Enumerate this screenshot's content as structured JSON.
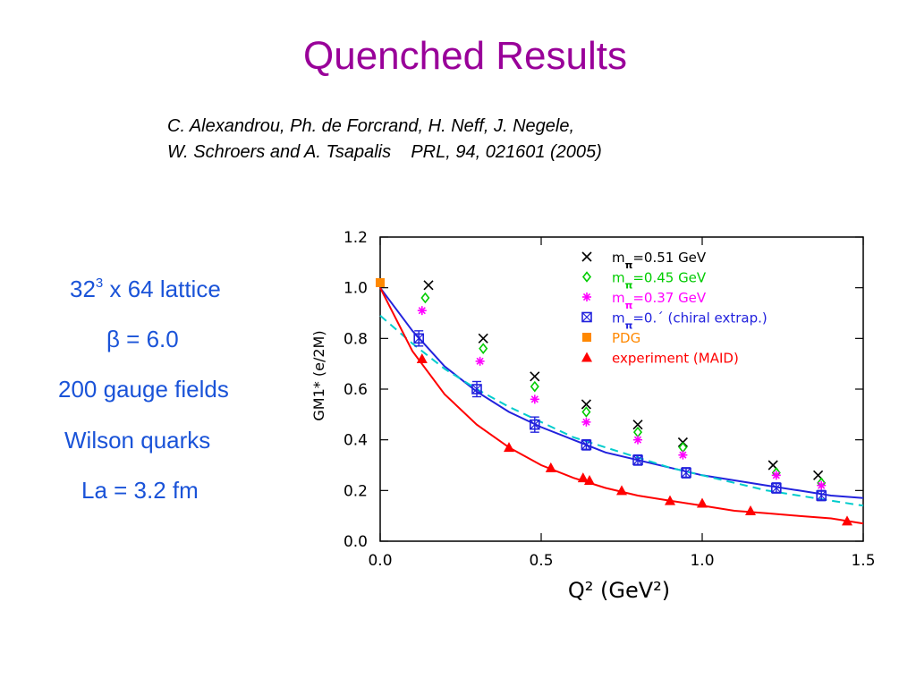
{
  "slide": {
    "title": "Quenched Results",
    "citation": {
      "line1": "C. Alexandrou, Ph. de Forcrand, H. Neff, J. Negele,",
      "line2": "W. Schroers and A. Tsapalis    PRL, 94, 021601 (2005)"
    },
    "params": {
      "lattice_base": "32",
      "lattice_exp": "3",
      "lattice_rest": " x 64 lattice",
      "beta": "β = 6.0",
      "gauge": "200 gauge fields",
      "quarks": "Wilson quarks",
      "spacing": "La = 3.2 fm"
    },
    "text_color": "#1a53d8",
    "title_color": "#990099"
  },
  "chart_data": {
    "type": "scatter",
    "xlabel": "Q² (GeV²)",
    "ylabel": "GM1* (e/2M)",
    "xlim": [
      0,
      1.5
    ],
    "ylim": [
      0,
      1.2
    ],
    "xticks": [
      "0.0",
      "0.5",
      "1.0",
      "1.5"
    ],
    "yticks": [
      "0.0",
      "0.2",
      "0.4",
      "0.6",
      "0.8",
      "1.0",
      "1.2"
    ],
    "legend_position": "top-right",
    "series": [
      {
        "name": "mπ=0.51 GeV",
        "legend_label": "m=0.51 GeV",
        "marker": "x",
        "color": "#000000",
        "points": [
          [
            0.15,
            1.01
          ],
          [
            0.32,
            0.8
          ],
          [
            0.48,
            0.65
          ],
          [
            0.64,
            0.54
          ],
          [
            0.8,
            0.46
          ],
          [
            0.94,
            0.39
          ],
          [
            1.22,
            0.3
          ],
          [
            1.36,
            0.26
          ]
        ]
      },
      {
        "name": "mπ=0.45 GeV",
        "legend_label": "m=0.45 GeV",
        "marker": "diamond",
        "color": "#00cc00",
        "points": [
          [
            0.14,
            0.96
          ],
          [
            0.32,
            0.76
          ],
          [
            0.48,
            0.61
          ],
          [
            0.64,
            0.51
          ],
          [
            0.8,
            0.43
          ],
          [
            0.94,
            0.37
          ],
          [
            1.23,
            0.27
          ],
          [
            1.37,
            0.23
          ]
        ]
      },
      {
        "name": "mπ=0.37 GeV",
        "legend_label": "m=0.37 GeV",
        "marker": "star",
        "color": "#ff00ff",
        "points": [
          [
            0.13,
            0.91
          ],
          [
            0.31,
            0.71
          ],
          [
            0.48,
            0.56
          ],
          [
            0.64,
            0.47
          ],
          [
            0.8,
            0.4
          ],
          [
            0.94,
            0.34
          ],
          [
            1.23,
            0.26
          ],
          [
            1.37,
            0.22
          ]
        ]
      },
      {
        "name": "mπ=0. (chiral extrap.)",
        "legend_label": "m=0.´ (chiral extrap.)",
        "marker": "boxed-x",
        "color": "#2222dd",
        "points": [
          [
            0.12,
            0.8
          ],
          [
            0.3,
            0.6
          ],
          [
            0.48,
            0.46
          ],
          [
            0.64,
            0.38
          ],
          [
            0.8,
            0.32
          ],
          [
            0.95,
            0.27
          ],
          [
            1.23,
            0.21
          ],
          [
            1.37,
            0.18
          ]
        ],
        "errors": [
          0.03,
          0.03,
          0.03,
          0.02,
          0.02,
          0.02,
          0.02,
          0.02
        ]
      },
      {
        "name": "PDG",
        "legend_label": "PDG",
        "marker": "square",
        "color": "#ff8800",
        "points": [
          [
            0.0,
            1.02
          ]
        ]
      },
      {
        "name": "experiment (MAID)",
        "legend_label": "experiment (MAID)",
        "marker": "triangle",
        "color": "#ff0000",
        "points": [
          [
            0.13,
            0.72
          ],
          [
            0.4,
            0.37
          ],
          [
            0.53,
            0.29
          ],
          [
            0.63,
            0.25
          ],
          [
            0.65,
            0.24
          ],
          [
            0.75,
            0.2
          ],
          [
            0.9,
            0.16
          ],
          [
            1.0,
            0.15
          ],
          [
            1.15,
            0.12
          ],
          [
            1.45,
            0.08
          ]
        ]
      }
    ],
    "curves": [
      {
        "name": "chiral fit",
        "style": "solid",
        "color": "#2222dd",
        "x": [
          0,
          0.1,
          0.2,
          0.3,
          0.4,
          0.5,
          0.6,
          0.7,
          0.8,
          0.9,
          1.0,
          1.1,
          1.2,
          1.3,
          1.4,
          1.5
        ],
        "y": [
          1.0,
          0.83,
          0.69,
          0.59,
          0.51,
          0.45,
          0.4,
          0.35,
          0.32,
          0.29,
          0.26,
          0.24,
          0.22,
          0.2,
          0.18,
          0.17
        ]
      },
      {
        "name": "dashed fit",
        "style": "dashed",
        "color": "#00cccc",
        "x": [
          0,
          0.1,
          0.2,
          0.3,
          0.4,
          0.5,
          0.6,
          0.7,
          0.8,
          0.9,
          1.0,
          1.1,
          1.2,
          1.3,
          1.4,
          1.5
        ],
        "y": [
          0.89,
          0.78,
          0.68,
          0.6,
          0.53,
          0.47,
          0.41,
          0.37,
          0.33,
          0.29,
          0.26,
          0.23,
          0.2,
          0.18,
          0.16,
          0.14
        ]
      },
      {
        "name": "experiment fit",
        "style": "solid",
        "color": "#ff0000",
        "x": [
          0,
          0.1,
          0.2,
          0.3,
          0.4,
          0.5,
          0.6,
          0.7,
          0.8,
          0.9,
          1.0,
          1.1,
          1.2,
          1.3,
          1.4,
          1.5
        ],
        "y": [
          1.0,
          0.75,
          0.58,
          0.46,
          0.37,
          0.3,
          0.25,
          0.21,
          0.18,
          0.16,
          0.14,
          0.12,
          0.11,
          0.1,
          0.09,
          0.07
        ]
      }
    ]
  }
}
